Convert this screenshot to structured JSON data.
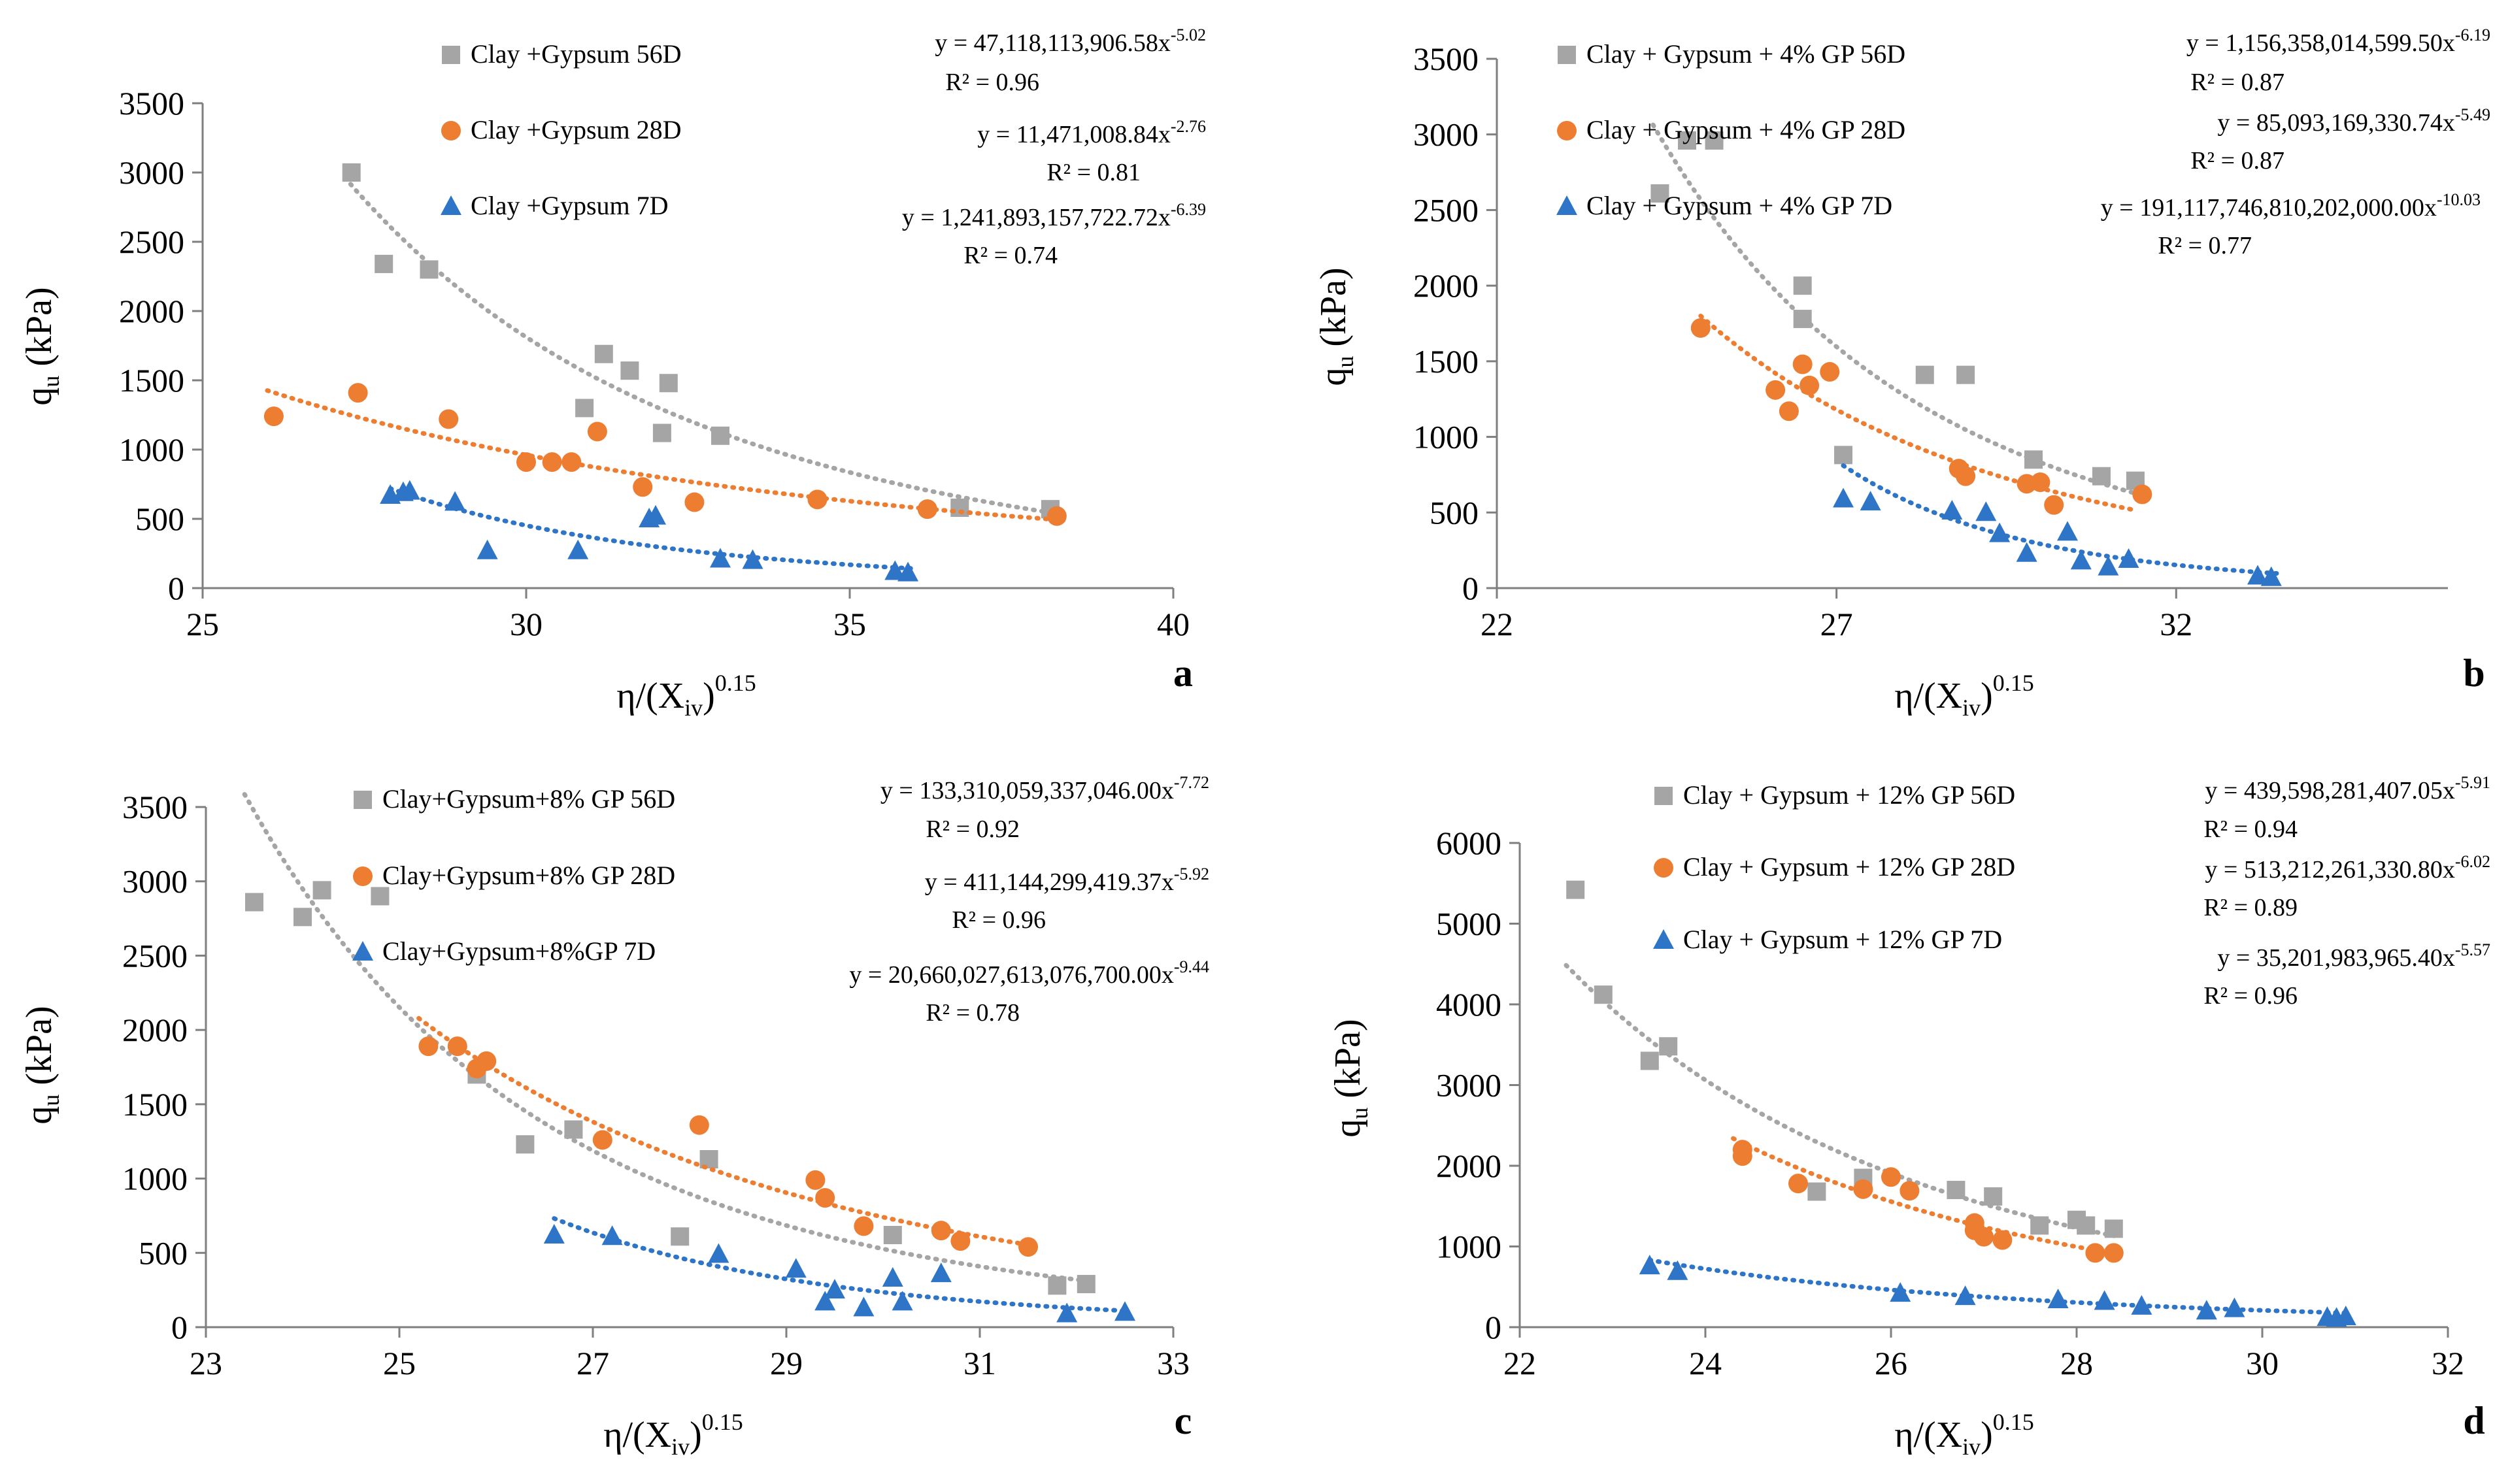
{
  "chart_data": [
    {
      "panel": "a",
      "type": "scatter",
      "xlabel": "η/(X",
      "xlabel_sub": "iv",
      "xlabel_sup": "0.15",
      "ylabel": "q",
      "ylabel_sub": "u",
      "ylabel_unit": " (kPa)",
      "xlim": [
        25,
        40
      ],
      "ylim": [
        0,
        3500
      ],
      "xticks": [
        25,
        30,
        35,
        40
      ],
      "yticks": [
        0,
        500,
        1000,
        1500,
        2000,
        2500,
        3000,
        3500
      ],
      "series": [
        {
          "name": "Clay +Gypsum 56D",
          "marker": "square",
          "color": "#a5a5a5",
          "x": [
            27.3,
            27.8,
            28.5,
            30.9,
            31.2,
            31.6,
            32.1,
            32.2,
            33.0,
            36.7,
            38.1
          ],
          "y": [
            3000,
            2340,
            2300,
            1300,
            1690,
            1570,
            1120,
            1480,
            1100,
            580,
            570
          ],
          "fit": {
            "a": 47118113906.58,
            "b": -5.02,
            "x0": 27.2,
            "x1": 38.2
          },
          "equation": "y = 47,118,113,906.58x",
          "exponent": "-5.02",
          "r2": "R² = 0.96"
        },
        {
          "name": "Clay +Gypsum 28D",
          "marker": "circle",
          "color": "#ed7d31",
          "x": [
            26.1,
            27.4,
            28.8,
            30.0,
            30.4,
            30.7,
            31.1,
            31.8,
            32.6,
            34.5,
            36.2,
            38.2
          ],
          "y": [
            1240,
            1410,
            1220,
            910,
            910,
            910,
            1130,
            730,
            620,
            640,
            570,
            520
          ],
          "fit": {
            "a": 11471008.84,
            "b": -2.76,
            "x0": 26.0,
            "x1": 38.3
          },
          "equation": "y = 11,471,008.84x",
          "exponent": "-2.76",
          "r2": "R² = 0.81"
        },
        {
          "name": "Clay +Gypsum 7D",
          "marker": "triangle",
          "color": "#2e75c7",
          "x": [
            27.9,
            28.1,
            28.2,
            28.9,
            29.4,
            30.8,
            31.9,
            32.0,
            33.0,
            33.5,
            35.7,
            35.9
          ],
          "y": [
            670,
            690,
            700,
            620,
            270,
            270,
            500,
            520,
            210,
            200,
            120,
            110
          ],
          "fit": {
            "a": 1241893157722.72,
            "b": -6.39,
            "x0": 27.9,
            "x1": 36.0
          },
          "equation": "y = 1,241,893,157,722.72x",
          "exponent": "-6.39",
          "r2": "R² = 0.74"
        }
      ]
    },
    {
      "panel": "b",
      "type": "scatter",
      "xlabel": "η/(X",
      "xlabel_sub": "iv",
      "xlabel_sup": "0.15",
      "ylabel": "q",
      "ylabel_sub": "u",
      "ylabel_unit": " (kPa)",
      "xlim": [
        22,
        36
      ],
      "ylim": [
        0,
        3500
      ],
      "xticks": [
        22,
        27,
        32
      ],
      "yticks": [
        0,
        500,
        1000,
        1500,
        2000,
        2500,
        3000,
        3500
      ],
      "series": [
        {
          "name": "Clay + Gypsum + 4% GP 56D",
          "marker": "square",
          "color": "#a5a5a5",
          "x": [
            24.4,
            24.8,
            25.2,
            26.5,
            26.5,
            27.1,
            28.3,
            28.9,
            29.9,
            30.9,
            31.4
          ],
          "y": [
            2610,
            2960,
            2960,
            2000,
            1780,
            880,
            1410,
            1410,
            850,
            740,
            710
          ],
          "fit": {
            "a": 1156358014599.5,
            "b": -6.19,
            "x0": 24.3,
            "x1": 31.5
          },
          "equation": "y = 1,156,358,014,599.50x",
          "exponent": "-6.19",
          "r2": "R² = 0.87"
        },
        {
          "name": "Clay + Gypsum + 4% GP 28D",
          "marker": "circle",
          "color": "#ed7d31",
          "x": [
            25.0,
            26.1,
            26.3,
            26.5,
            26.6,
            26.9,
            28.8,
            28.9,
            29.8,
            30.0,
            30.2,
            31.5
          ],
          "y": [
            1720,
            1310,
            1170,
            1480,
            1340,
            1430,
            790,
            740,
            690,
            700,
            550,
            620
          ],
          "fit": {
            "a": 85093169330.74,
            "b": -5.49,
            "x0": 25.0,
            "x1": 31.4
          },
          "equation": "y = 85,093,169,330.74x",
          "exponent": "-5.49",
          "r2": "R² = 0.87"
        },
        {
          "name": "Clay + Gypsum + 4% GP 7D",
          "marker": "triangle",
          "color": "#2e75c7",
          "x": [
            27.1,
            27.5,
            28.7,
            29.2,
            29.4,
            29.8,
            30.4,
            30.6,
            31.0,
            31.3,
            33.2,
            33.4
          ],
          "y": [
            590,
            570,
            510,
            500,
            360,
            230,
            370,
            180,
            140,
            190,
            80,
            70
          ],
          "fit": {
            "a": 191117746810202000,
            "b": -10.03,
            "x0": 27.1,
            "x1": 33.5
          },
          "equation": "y = 191,117,746,810,202,000.00x",
          "exponent": "-10.03",
          "r2": "R² = 0.77"
        }
      ]
    },
    {
      "panel": "c",
      "type": "scatter",
      "xlabel": "η/(X",
      "xlabel_sub": "iv",
      "xlabel_sup": "0.15",
      "ylabel": "q",
      "ylabel_sub": "u",
      "ylabel_unit": " (kPa)",
      "xlim": [
        23,
        33
      ],
      "ylim": [
        0,
        3500
      ],
      "xticks": [
        23,
        25,
        27,
        29,
        31,
        33
      ],
      "yticks": [
        0,
        500,
        1000,
        1500,
        2000,
        2500,
        3000,
        3500
      ],
      "series": [
        {
          "name": "Clay+Gypsum+8% GP 56D",
          "marker": "square",
          "color": "#a5a5a5",
          "x": [
            23.5,
            24.0,
            24.2,
            24.8,
            25.8,
            26.3,
            26.8,
            27.9,
            28.2,
            30.1,
            31.8,
            32.1
          ],
          "y": [
            2860,
            2760,
            2940,
            2900,
            1700,
            1230,
            1330,
            610,
            1130,
            620,
            280,
            290
          ],
          "fit": {
            "a": 133310059337046.0,
            "b": -7.72,
            "x0": 23.4,
            "x1": 32.1
          },
          "equation": "y = 133,310,059,337,046.00x",
          "exponent": "-7.72",
          "r2": "R² = 0.92"
        },
        {
          "name": "Clay+Gypsum+8% GP 28D",
          "marker": "circle",
          "color": "#ed7d31",
          "x": [
            25.3,
            25.6,
            25.8,
            25.9,
            27.1,
            28.1,
            29.3,
            29.4,
            29.8,
            30.6,
            30.8,
            31.5
          ],
          "y": [
            1890,
            1890,
            1740,
            1790,
            1260,
            1360,
            990,
            870,
            680,
            650,
            580,
            540
          ],
          "fit": {
            "a": 411144299419.37,
            "b": -5.92,
            "x0": 25.2,
            "x1": 31.5
          },
          "equation": "y = 411,144,299,419.37x",
          "exponent": "-5.92",
          "r2": "R² = 0.96"
        },
        {
          "name": "Clay+Gypsum+8%GP 7D",
          "marker": "triangle",
          "color": "#2e75c7",
          "x": [
            26.6,
            27.2,
            28.3,
            29.1,
            29.4,
            29.5,
            29.8,
            30.1,
            30.2,
            30.6,
            31.9,
            32.5
          ],
          "y": [
            620,
            610,
            490,
            390,
            170,
            250,
            130,
            330,
            170,
            360,
            90,
            100
          ],
          "fit": {
            "a": 20660027613076700,
            "b": -9.44,
            "x0": 26.6,
            "x1": 32.5
          },
          "equation": "y = 20,660,027,613,076,700.00x",
          "exponent": "-9.44",
          "r2": "R² = 0.78"
        }
      ]
    },
    {
      "panel": "d",
      "type": "scatter",
      "xlabel": "η/(X",
      "xlabel_sub": "iv",
      "xlabel_sup": "0.15",
      "ylabel": "q",
      "ylabel_sub": "u",
      "ylabel_unit": " (kPa)",
      "xlim": [
        22,
        32
      ],
      "ylim": [
        0,
        6000
      ],
      "xticks": [
        22,
        24,
        26,
        28,
        30,
        32
      ],
      "yticks": [
        0,
        1000,
        2000,
        3000,
        4000,
        5000,
        6000
      ],
      "series": [
        {
          "name": "Clay + Gypsum + 12% GP 56D",
          "marker": "square",
          "color": "#a5a5a5",
          "x": [
            22.6,
            22.9,
            23.4,
            23.6,
            25.2,
            25.7,
            26.7,
            27.1,
            27.6,
            28.0,
            28.1,
            28.4
          ],
          "y": [
            5420,
            4120,
            3300,
            3480,
            1680,
            1850,
            1700,
            1620,
            1260,
            1330,
            1260,
            1220
          ],
          "fit": {
            "a": 439598281407.05,
            "b": -5.91,
            "x0": 22.5,
            "x1": 28.4
          },
          "equation": "y = 439,598,281,407.05x",
          "exponent": "-5.91",
          "r2": "R² = 0.94"
        },
        {
          "name": "Clay + Gypsum + 12% GP 28D",
          "marker": "circle",
          "color": "#ed7d31",
          "x": [
            24.4,
            24.4,
            25.0,
            25.7,
            26.0,
            26.2,
            26.9,
            26.9,
            27.0,
            27.2,
            28.2,
            28.4
          ],
          "y": [
            2200,
            2120,
            1780,
            1710,
            1860,
            1690,
            1290,
            1200,
            1120,
            1080,
            920,
            920
          ],
          "fit": {
            "a": 513212261330.8,
            "b": -6.02,
            "x0": 24.3,
            "x1": 28.4
          },
          "equation": "y = 513,212,261,330.80x",
          "exponent": "-6.02",
          "r2": "R² = 0.89"
        },
        {
          "name": "Clay + Gypsum + 12% GP 7D",
          "marker": "triangle",
          "color": "#2e75c7",
          "x": [
            23.4,
            23.7,
            26.1,
            26.8,
            27.8,
            28.3,
            28.7,
            29.4,
            29.7,
            30.7,
            30.8,
            30.9
          ],
          "y": [
            760,
            690,
            420,
            380,
            340,
            320,
            260,
            200,
            230,
            120,
            110,
            130
          ],
          "fit": {
            "a": 35201983965.4,
            "b": -5.57,
            "x0": 23.4,
            "x1": 30.9
          },
          "equation": "y = 35,201,983,965.40x",
          "exponent": "-5.57",
          "r2": "R² = 0.96"
        }
      ]
    }
  ]
}
